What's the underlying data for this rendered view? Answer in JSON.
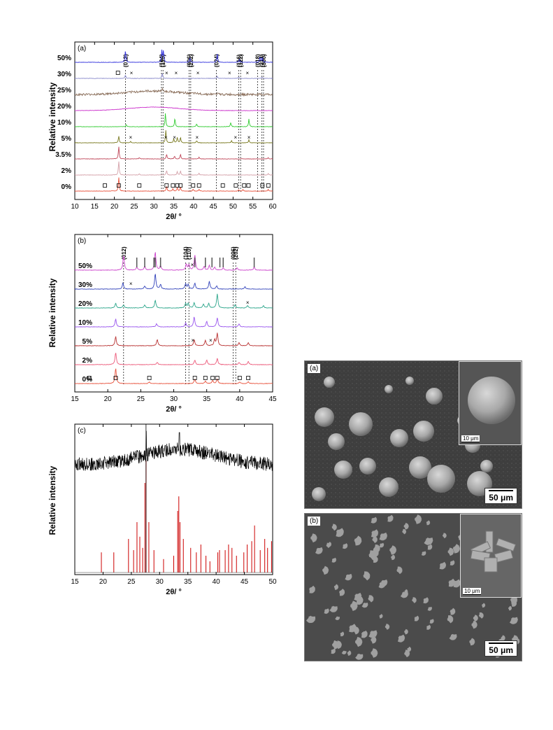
{
  "colors": {
    "x_100": "#e8523c",
    "x_80": "#e23c5a",
    "x_60": "#d4a0a8",
    "x_40": "#c0485a",
    "x_30": "#b83030",
    "x_20": "#7a7a20",
    "x_10": "#33cc33",
    "x_5": "#cc33cc",
    "x_3": "#8a6e5a",
    "x_2": "#8a8acc",
    "x_1": "#3333dd",
    "b_0": "#e8523c",
    "b_2": "#ec5a7a",
    "b_5": "#b83030",
    "b_10": "#9955ee",
    "b_20": "#2aa58a",
    "b_30": "#3344bb",
    "b_50": "#cc44cc",
    "c_exp": "#000000",
    "c_ref": "#cc0000"
  },
  "chart_data": [
    {
      "panel": "(a)",
      "type": "line",
      "ylabel": "Relative intensity",
      "xlabel": "2θ/ °",
      "xlim": [
        10,
        60
      ],
      "xticks": [
        "10",
        "15",
        "20",
        "25",
        "30",
        "35",
        "40",
        "45",
        "50",
        "55",
        "60"
      ],
      "planes": [
        "(012)",
        "(104)",
        "(110)",
        "(006)",
        "(202)",
        "(024)",
        "(116)",
        "(122)",
        "(018)",
        "(214)",
        "(300)"
      ],
      "plane_positions": [
        22.8,
        31.9,
        32.3,
        38.9,
        39.3,
        45.8,
        51.4,
        51.9,
        56.2,
        57.3,
        57.7
      ],
      "series": [
        {
          "name": "0%",
          "peaks": [
            [
              21.1,
              1.0
            ],
            [
              33.2,
              0.35
            ],
            [
              34.8,
              0.2
            ],
            [
              35.9,
              0.25
            ],
            [
              36.7,
              0.3
            ],
            [
              39.9,
              0.15
            ],
            [
              41.4,
              0.12
            ],
            [
              51.4,
              0.1
            ],
            [
              52.5,
              0.1
            ],
            [
              58.9,
              0.12
            ]
          ],
          "markers": "square",
          "marker_pos": [
            17.6,
            21.1,
            26.3,
            33.2,
            34.8,
            35.9,
            36.7,
            39.9,
            41.4,
            47.4,
            50.7,
            52.8,
            53.9,
            57.4,
            58.9
          ]
        },
        {
          "name": "2%",
          "peaks": [
            [
              21.1,
              1.0
            ],
            [
              26.3,
              0.1
            ],
            [
              33.2,
              0.35
            ],
            [
              35.9,
              0.25
            ],
            [
              36.7,
              0.3
            ],
            [
              41.4,
              0.12
            ],
            [
              58.9,
              0.1
            ]
          ]
        },
        {
          "name": "3.5%",
          "peaks": [
            [
              21.1,
              0.9
            ],
            [
              26.3,
              0.1
            ],
            [
              33.2,
              0.35
            ],
            [
              35.2,
              0.2
            ],
            [
              36.7,
              0.35
            ],
            [
              41.4,
              0.12
            ],
            [
              58.9,
              0.1
            ]
          ]
        },
        {
          "name": "5%",
          "peaks": [
            [
              21.1,
              0.5
            ],
            [
              24.1,
              0.1
            ],
            [
              33.0,
              0.9
            ],
            [
              35.0,
              0.3
            ],
            [
              35.9,
              0.4
            ],
            [
              36.7,
              0.4
            ],
            [
              40.8,
              0.15
            ],
            [
              49.6,
              0.15
            ],
            [
              54.0,
              0.2
            ]
          ],
          "markers": "cross",
          "marker_pos": [
            24.1,
            33.0,
            35.2,
            40.9,
            50.6,
            54.0
          ]
        },
        {
          "name": "10%",
          "peaks": [
            [
              23.0,
              0.15
            ],
            [
              32.9,
              1.0
            ],
            [
              35.3,
              0.6
            ],
            [
              40.8,
              0.2
            ],
            [
              49.4,
              0.3
            ],
            [
              54.0,
              0.55
            ]
          ]
        },
        {
          "name": "20%",
          "peaks": [],
          "hump": true
        },
        {
          "name": "25%",
          "peaks": [
            [
              32.1,
              0.2
            ],
            [
              46.0,
              0.1
            ]
          ],
          "hump": true,
          "noise": true
        },
        {
          "name": "30%",
          "peaks": [
            [
              22.8,
              0.25
            ],
            [
              32.1,
              0.35
            ],
            [
              46.0,
              0.15
            ],
            [
              51.4,
              0.1
            ],
            [
              57.3,
              0.1
            ]
          ],
          "markers": "mixed",
          "marker_pos": [
            20.9,
            24.3,
            33.2,
            35.6,
            41.1,
            49.1,
            53.6
          ]
        },
        {
          "name": "50%",
          "peaks": [
            [
              22.8,
              0.9
            ],
            [
              32.0,
              0.85
            ],
            [
              32.4,
              0.8
            ],
            [
              39.1,
              0.3
            ],
            [
              46.0,
              0.6
            ],
            [
              51.6,
              0.2
            ],
            [
              56.8,
              0.4
            ],
            [
              57.4,
              0.35
            ]
          ]
        }
      ]
    },
    {
      "panel": "(b)",
      "type": "line",
      "ylabel": "Relative intensity",
      "xlabel": "2θ/ °",
      "xlim": [
        15,
        45
      ],
      "xticks": [
        "15",
        "20",
        "25",
        "30",
        "35",
        "40",
        "45"
      ],
      "planes": [
        "(012)",
        "(104)",
        "(110)",
        "(006)",
        "(202)"
      ],
      "plane_positions": [
        22.4,
        31.8,
        32.3,
        39.0,
        39.4
      ],
      "series": [
        {
          "name": "0%",
          "peaks": [
            [
              21.2,
              1.0
            ],
            [
              26.3,
              0.1
            ],
            [
              33.2,
              0.3
            ],
            [
              34.8,
              0.15
            ],
            [
              35.9,
              0.2
            ],
            [
              36.6,
              0.3
            ],
            [
              40.0,
              0.1
            ],
            [
              41.3,
              0.12
            ]
          ],
          "markers": "square",
          "marker_pos": [
            17.2,
            21.2,
            26.3,
            33.2,
            34.8,
            35.9,
            36.6,
            40.0,
            41.3
          ]
        },
        {
          "name": "2%",
          "peaks": [
            [
              21.2,
              0.8
            ],
            [
              27.5,
              0.15
            ],
            [
              33.2,
              0.3
            ],
            [
              35.0,
              0.3
            ],
            [
              36.6,
              0.4
            ],
            [
              39.9,
              0.15
            ],
            [
              41.3,
              0.2
            ]
          ]
        },
        {
          "name": "5%",
          "peaks": [
            [
              21.2,
              0.6
            ],
            [
              27.5,
              0.4
            ],
            [
              33.1,
              0.4
            ],
            [
              34.8,
              0.35
            ],
            [
              36.2,
              0.4
            ],
            [
              36.6,
              0.8
            ],
            [
              39.9,
              0.2
            ],
            [
              41.3,
              0.2
            ]
          ],
          "markers": "cross",
          "marker_pos": [
            32.9,
            35.6
          ]
        },
        {
          "name": "10%",
          "peaks": [
            [
              21.2,
              0.5
            ],
            [
              27.4,
              0.2
            ],
            [
              31.8,
              0.25
            ],
            [
              33.1,
              0.65
            ],
            [
              35.0,
              0.35
            ],
            [
              36.6,
              0.6
            ],
            [
              39.9,
              0.2
            ]
          ]
        },
        {
          "name": "20%",
          "peaks": [
            [
              21.2,
              0.3
            ],
            [
              22.4,
              0.2
            ],
            [
              25.6,
              0.2
            ],
            [
              27.2,
              0.5
            ],
            [
              31.8,
              0.3
            ],
            [
              32.2,
              0.3
            ],
            [
              33.1,
              0.35
            ],
            [
              34.5,
              0.25
            ],
            [
              35.3,
              0.3
            ],
            [
              36.6,
              0.9
            ],
            [
              39.3,
              0.2
            ],
            [
              41.2,
              0.15
            ],
            [
              43.6,
              0.15
            ]
          ],
          "markers": "cross",
          "marker_pos": [
            41.2
          ]
        },
        {
          "name": "30%",
          "peaks": [
            [
              22.3,
              0.4
            ],
            [
              25.6,
              0.2
            ],
            [
              27.2,
              1.0
            ],
            [
              28.0,
              0.3
            ],
            [
              31.8,
              0.35
            ],
            [
              32.2,
              0.3
            ],
            [
              33.2,
              0.4
            ],
            [
              35.4,
              0.5
            ],
            [
              36.5,
              0.2
            ],
            [
              40.8,
              0.15
            ]
          ],
          "markers": "cross",
          "marker_pos": [
            23.5
          ]
        },
        {
          "name": "50%",
          "peaks": [
            [
              22.4,
              0.95
            ],
            [
              24.4,
              0.2
            ],
            [
              25.6,
              0.25
            ],
            [
              27.2,
              1.2
            ],
            [
              28.0,
              0.3
            ],
            [
              31.9,
              0.4
            ],
            [
              32.3,
              0.35
            ],
            [
              33.2,
              1.0
            ],
            [
              34.6,
              0.25
            ],
            [
              35.4,
              0.3
            ],
            [
              36.2,
              0.2
            ],
            [
              37.5,
              0.15
            ],
            [
              39.6,
              0.15
            ],
            [
              42.2,
              0.2
            ]
          ],
          "markers": "cross",
          "marker_pos": [
            32.8
          ]
        }
      ],
      "reference_ticks": [
        24.4,
        25.6,
        27.0,
        27.2,
        28.0,
        33.2,
        34.8,
        35.8,
        37.0,
        37.5,
        42.2
      ]
    },
    {
      "panel": "(c)",
      "type": "line",
      "ylabel": "Relative intensity",
      "xlabel": "2θ/ °",
      "xlim": [
        15,
        50
      ],
      "xticks": [
        "15",
        "20",
        "25",
        "30",
        "35",
        "40",
        "45",
        "50"
      ],
      "series": [
        {
          "name": "",
          "style": "noisy",
          "hump_center": 33.5
        },
        {
          "name": "",
          "style": "sticks",
          "sticks": [
            [
              19.7,
              0.18
            ],
            [
              21.9,
              0.18
            ],
            [
              24.5,
              0.3
            ],
            [
              25.4,
              0.2
            ],
            [
              26.0,
              0.45
            ],
            [
              26.5,
              0.32
            ],
            [
              27.0,
              0.22
            ],
            [
              27.4,
              0.8
            ],
            [
              27.6,
              1.0
            ],
            [
              28.1,
              0.45
            ],
            [
              29.0,
              0.2
            ],
            [
              30.7,
              0.12
            ],
            [
              32.5,
              0.15
            ],
            [
              33.2,
              0.55
            ],
            [
              33.4,
              0.68
            ],
            [
              33.6,
              0.45
            ],
            [
              34.2,
              0.3
            ],
            [
              35.5,
              0.22
            ],
            [
              36.5,
              0.18
            ],
            [
              37.3,
              0.25
            ],
            [
              38.2,
              0.15
            ],
            [
              38.9,
              0.1
            ],
            [
              40.3,
              0.18
            ],
            [
              40.6,
              0.2
            ],
            [
              41.6,
              0.2
            ],
            [
              42.2,
              0.25
            ],
            [
              42.8,
              0.22
            ],
            [
              43.6,
              0.15
            ],
            [
              44.9,
              0.18
            ],
            [
              45.5,
              0.25
            ],
            [
              46.3,
              0.28
            ],
            [
              46.8,
              0.42
            ],
            [
              47.8,
              0.2
            ],
            [
              48.6,
              0.3
            ],
            [
              49.1,
              0.22
            ],
            [
              49.8,
              0.28
            ]
          ]
        }
      ]
    }
  ],
  "sem": {
    "a": {
      "panel": "(a)",
      "scale": "50 μm",
      "inset_scale": "10 μm"
    },
    "b": {
      "panel": "(b)",
      "scale": "50 μm",
      "inset_scale": "10 μm"
    }
  }
}
